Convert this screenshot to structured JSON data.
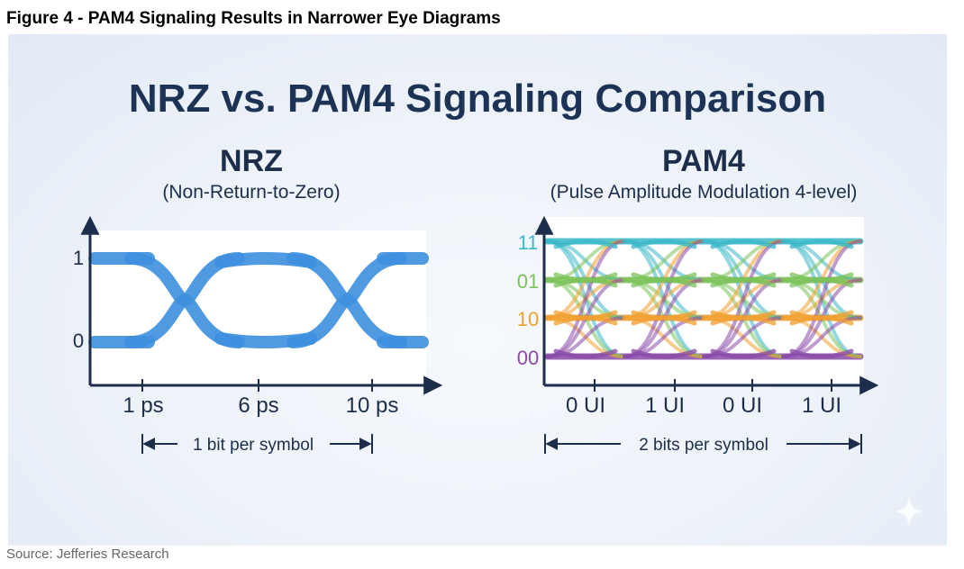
{
  "figure_title": "Figure 4 - PAM4 Signaling Results in Narrower Eye Diagrams",
  "source": "Source: Jefferies Research",
  "diagram": {
    "title": "NRZ vs. PAM4 Signaling Comparison",
    "nrz": {
      "heading": "NRZ",
      "subheading": "(Non-Return-to-Zero)",
      "y_levels": [
        "1",
        "0"
      ],
      "x_labels": [
        "1 ps",
        "6 ps",
        "10 ps"
      ],
      "span_label": "1 bit per symbol",
      "color": "#3d8fdf"
    },
    "pam4": {
      "heading": "PAM4",
      "subheading": "(Pulse Amplitude Modulation 4-level)",
      "y_levels": [
        "11",
        "01",
        "10",
        "00"
      ],
      "level_colors": [
        "#3ab8c8",
        "#7cc25a",
        "#f0a030",
        "#8a4aa8"
      ],
      "x_labels": [
        "0 UI",
        "1 UI",
        "0 UI",
        "1 UI"
      ],
      "span_label": "2 bits per symbol"
    }
  }
}
